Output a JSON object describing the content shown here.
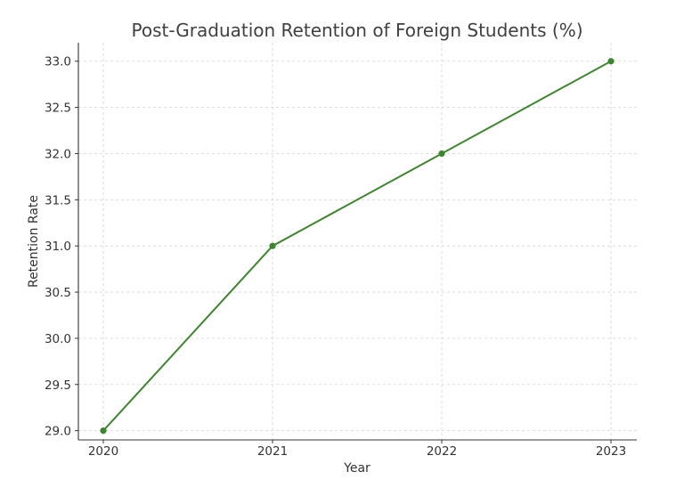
{
  "chart_data": {
    "type": "line",
    "title": "Post-Graduation Retention of Foreign Students (%)",
    "xlabel": "Year",
    "ylabel": "Retention Rate",
    "categories": [
      "2020",
      "2021",
      "2022",
      "2023"
    ],
    "x_tick_labels": [
      "2020",
      "2021",
      "2022",
      "2023"
    ],
    "y_tick_labels": [
      "29.0",
      "29.5",
      "30.0",
      "30.5",
      "31.0",
      "31.5",
      "32.0",
      "32.5",
      "33.0"
    ],
    "y_ticks": [
      29.0,
      29.5,
      30.0,
      30.5,
      31.0,
      31.5,
      32.0,
      32.5,
      33.0
    ],
    "ylim": [
      28.9,
      33.2
    ],
    "grid": true,
    "legend": "none",
    "series": [
      {
        "values": [
          29.0,
          31.0,
          32.0,
          33.0
        ],
        "color": "#3f8430"
      }
    ]
  }
}
